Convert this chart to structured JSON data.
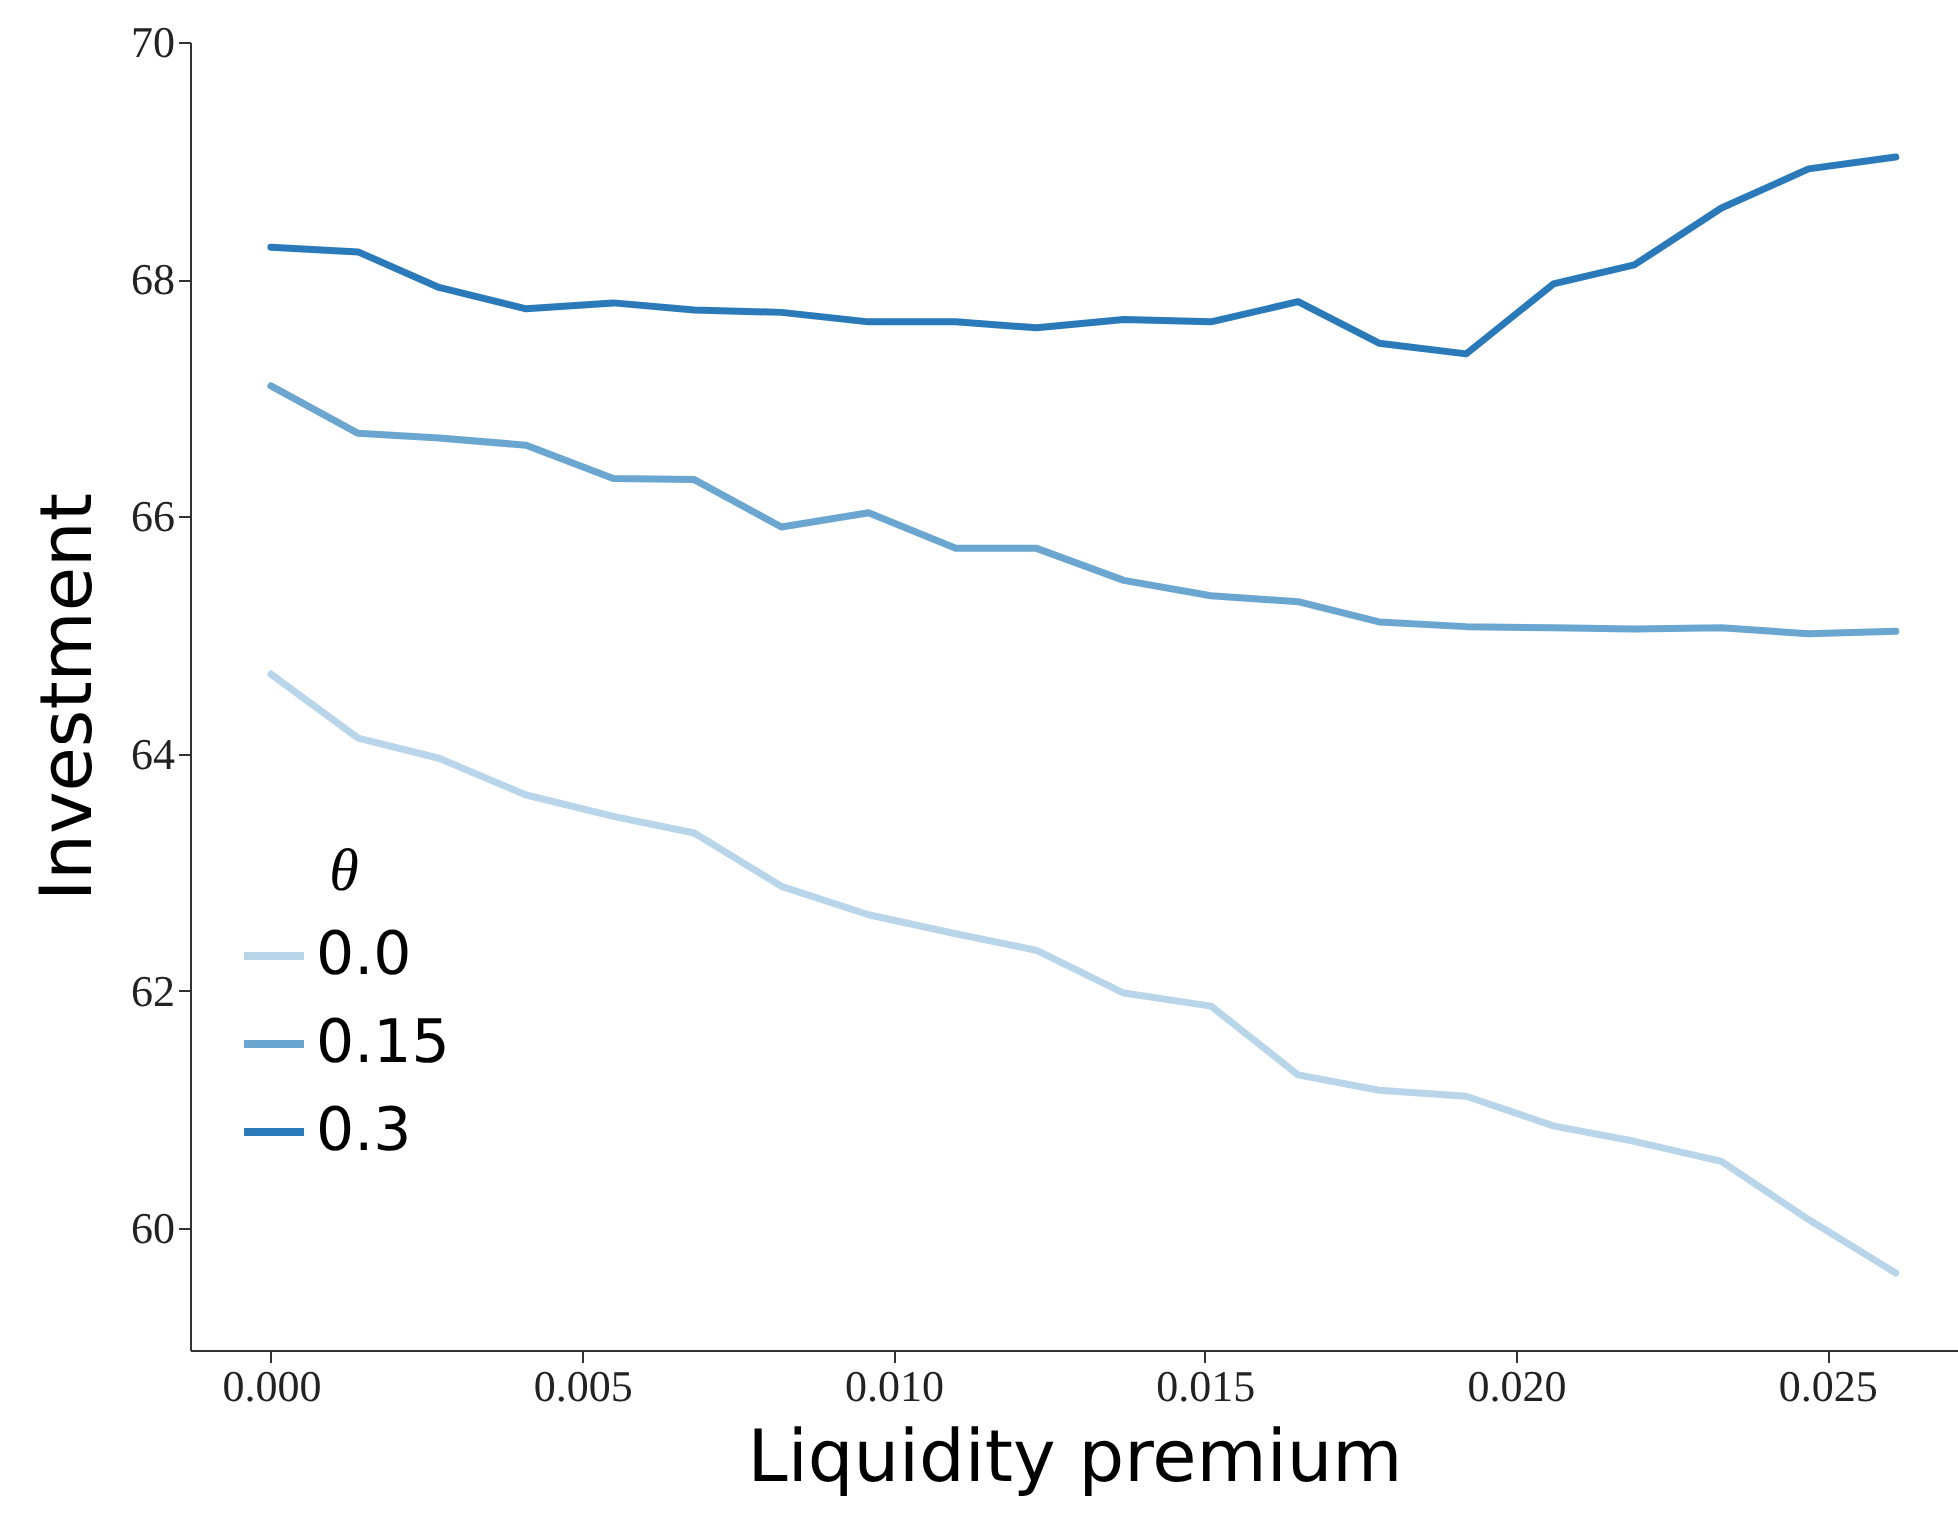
{
  "chart_data": {
    "type": "line",
    "xlabel": "Liquidity premium",
    "ylabel": "Investment",
    "legend_title": "θ",
    "legend": "bottom left",
    "x": [
      0,
      0.0014,
      0.0027,
      0.0041,
      0.0055,
      0.0068,
      0.0082,
      0.0096,
      0.011,
      0.0123,
      0.0137,
      0.0151,
      0.0165,
      0.0178,
      0.0192,
      0.0206,
      0.0219,
      0.0233,
      0.0247,
      0.0261
    ],
    "series": [
      {
        "name": "0.0",
        "color": "#b9d5ea",
        "values": [
          64.67,
          64.13,
          63.96,
          63.65,
          63.47,
          63.33,
          62.88,
          62.64,
          62.48,
          62.34,
          61.98,
          61.87,
          61.29,
          61.16,
          61.11,
          60.86,
          60.73,
          60.56,
          60.07,
          59.62
        ]
      },
      {
        "name": "0.15",
        "color": "#6aa6d0",
        "values": [
          67.1,
          66.7,
          66.66,
          66.6,
          66.32,
          66.31,
          65.91,
          66.03,
          65.73,
          65.73,
          65.46,
          65.33,
          65.28,
          65.11,
          65.07,
          65.06,
          65.05,
          65.06,
          65.01,
          65.03
        ]
      },
      {
        "name": "0.3",
        "color": "#2a7ab9",
        "values": [
          68.27,
          68.23,
          67.93,
          67.75,
          67.8,
          67.74,
          67.72,
          67.64,
          67.64,
          67.59,
          67.66,
          67.64,
          67.81,
          67.46,
          67.37,
          67.96,
          68.12,
          68.6,
          68.93,
          69.03
        ]
      }
    ],
    "xlim": [
      -0.0013,
      0.0271
    ],
    "ylim": [
      58.97,
      70
    ],
    "xticks": [
      {
        "value": 0,
        "label": "0.000"
      },
      {
        "value": 0.005,
        "label": "0.005"
      },
      {
        "value": 0.01,
        "label": "0.010"
      },
      {
        "value": 0.015,
        "label": "0.015"
      },
      {
        "value": 0.02,
        "label": "0.020"
      },
      {
        "value": 0.025,
        "label": "0.025"
      }
    ],
    "yticks": [
      60,
      62,
      64,
      66,
      68,
      70
    ]
  }
}
